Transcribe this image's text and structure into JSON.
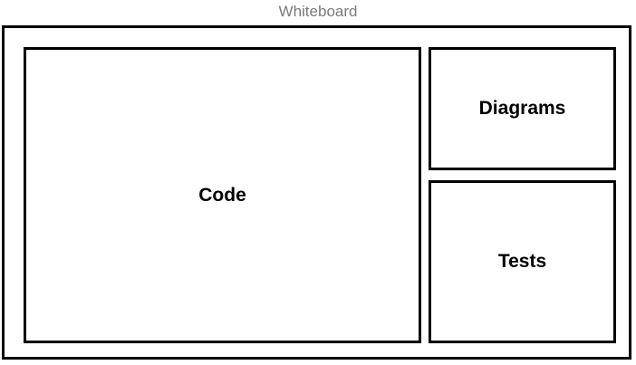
{
  "title": "Whiteboard",
  "panels": {
    "code": "Code",
    "diagrams": "Diagrams",
    "tests": "Tests"
  }
}
